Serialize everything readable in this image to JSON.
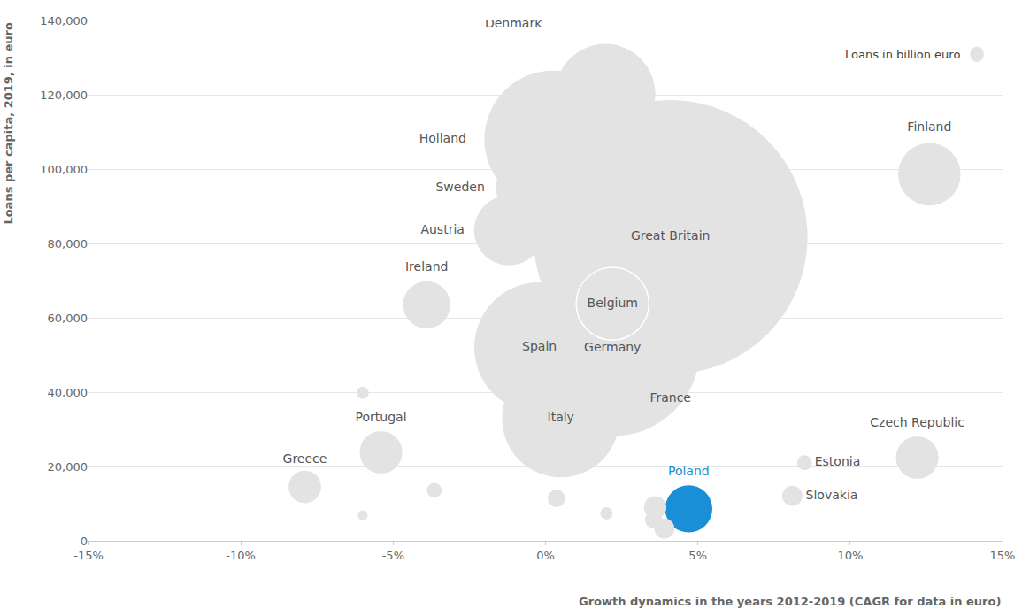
{
  "chart_data": {
    "type": "scatter",
    "marker": "bubble",
    "x_label": "Growth dynamics in the years 2012-2019 (CAGR for data in euro)",
    "y_label": "Loans per capita, 2019, in euro",
    "size_label": "Loans in billion euro",
    "grid": true,
    "points": [
      {
        "name": "Great Britain",
        "x": 4.1,
        "y": 81700,
        "size": 5400
      },
      {
        "name": "France",
        "x": 4.1,
        "y": 71400,
        "size": 2500
      },
      {
        "name": "Germany",
        "x": 2.2,
        "y": 51700,
        "size": 2200
      },
      {
        "name": "Holland",
        "x": 0.25,
        "y": 108000,
        "size": 1360
      },
      {
        "name": "Spain",
        "x": -0.2,
        "y": 52000,
        "size": 1220
      },
      {
        "name": "Italy",
        "x": 0.5,
        "y": 32900,
        "size": 990
      },
      {
        "name": "Denmark",
        "x": 1.96,
        "y": 120200,
        "size": 720
      },
      {
        "name": "Sweden",
        "x": -0.22,
        "y": 95000,
        "size": 520
      },
      {
        "name": "Belgium",
        "x": 2.2,
        "y": 63800,
        "size": 380
      },
      {
        "name": "Austria",
        "x": -1.2,
        "y": 83500,
        "size": 350
      },
      {
        "name": "Finland",
        "x": 12.6,
        "y": 98600,
        "size": 280
      },
      {
        "name": "Ireland",
        "x": -3.9,
        "y": 63500,
        "size": 160
      },
      {
        "name": "Poland",
        "x": 4.7,
        "y": 8600,
        "size": 160
      },
      {
        "name": "Portugal",
        "x": -5.4,
        "y": 23800,
        "size": 130
      },
      {
        "name": "Czech Republic",
        "x": 12.2,
        "y": 22400,
        "size": 130
      },
      {
        "name": "Greece",
        "x": -7.9,
        "y": 14500,
        "size": 76
      },
      {
        "name": "Slovakia",
        "x": 8.1,
        "y": 12100,
        "size": 29
      },
      {
        "name": "Estonia",
        "x": 8.5,
        "y": 21000,
        "size": 16
      },
      {
        "name": null,
        "x": -6.0,
        "y": 39800,
        "size": 11
      },
      {
        "name": null,
        "x": -3.65,
        "y": 13600,
        "size": 16
      },
      {
        "name": null,
        "x": -6.0,
        "y": 6900,
        "size": 7
      },
      {
        "name": null,
        "x": 0.36,
        "y": 11400,
        "size": 22
      },
      {
        "name": null,
        "x": 2.0,
        "y": 7400,
        "size": 11
      },
      {
        "name": null,
        "x": 3.6,
        "y": 9000,
        "size": 36
      },
      {
        "name": null,
        "x": 3.55,
        "y": 5700,
        "size": 22
      },
      {
        "name": null,
        "x": 3.9,
        "y": 3300,
        "size": 29
      }
    ],
    "colors": [
      "#e3e3e3",
      "#e3e3e3",
      "#e3e3e3",
      "#e3e3e3",
      "#e3e3e3",
      "#e3e3e3",
      "#e3e3e3",
      "#e3e3e3",
      "#e3e3e3",
      "#e3e3e3",
      "#e3e3e3",
      "#e3e3e3",
      "#1a8fd8",
      "#e3e3e3",
      "#e3e3e3",
      "#e3e3e3",
      "#e3e3e3",
      "#e3e3e3",
      "#e3e3e3",
      "#e3e3e3",
      "#e3e3e3",
      "#e3e3e3",
      "#e3e3e3",
      "#e3e3e3",
      "#e3e3e3",
      "#e3e3e3"
    ],
    "xlim": [
      -15,
      15
    ],
    "xticks": [
      {
        "value": -15,
        "label": "-15%"
      },
      {
        "value": -10,
        "label": "-10%"
      },
      {
        "value": -5,
        "label": "-5%"
      },
      {
        "value": 0,
        "label": "0%"
      },
      {
        "value": 5,
        "label": "5%"
      },
      {
        "value": 10,
        "label": "10%"
      },
      {
        "value": 15,
        "label": "15%"
      }
    ],
    "ylim": [
      0,
      140000
    ],
    "yticks": [
      0,
      {
        "value": 20000,
        "label": "20,000"
      },
      {
        "value": 40000,
        "label": "40,000"
      },
      {
        "value": 60000,
        "label": "60,000"
      },
      {
        "value": 80000,
        "label": "80,000"
      },
      {
        "value": 100000,
        "label": "100,000"
      },
      {
        "value": 120000,
        "label": "120,000"
      },
      {
        "value": 140000,
        "label": "140,000"
      }
    ]
  }
}
